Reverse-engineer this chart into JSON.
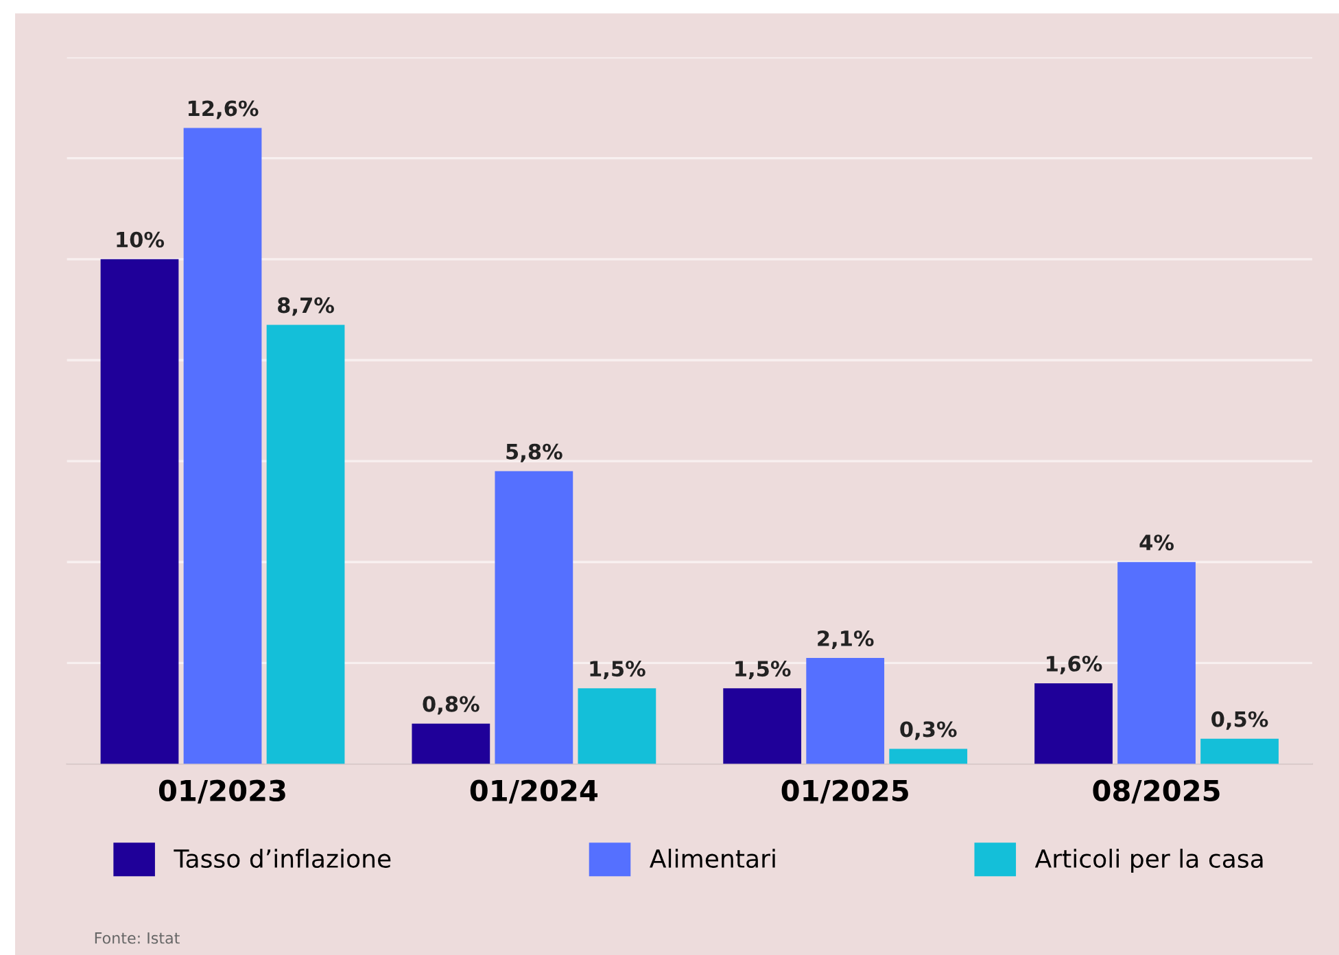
{
  "chart_data": {
    "type": "bar",
    "categories": [
      "01/2023",
      "01/2024",
      "01/2025",
      "08/2025"
    ],
    "series": [
      {
        "name": "Tasso d’inflazione",
        "color": "#1f0099",
        "values": [
          10,
          0.8,
          1.5,
          1.6
        ],
        "value_labels": [
          "10%",
          "0,8%",
          "1,5%",
          "1,6%"
        ]
      },
      {
        "name": "Alimentari",
        "color": "#5570ff",
        "values": [
          12.6,
          5.8,
          2.1,
          4
        ],
        "value_labels": [
          "12,6%",
          "5,8%",
          "2,1%",
          "4%"
        ]
      },
      {
        "name": "Articoli per la casa",
        "color": "#14bfd9",
        "values": [
          8.7,
          1.5,
          0.3,
          0.5
        ],
        "value_labels": [
          "8,7%",
          "1,5%",
          "0,3%",
          "0,5%"
        ]
      }
    ],
    "ylim": [
      0,
      14
    ],
    "yticks": [
      0,
      2,
      4,
      6,
      8,
      10,
      12,
      14
    ],
    "tick_labels": "x",
    "grid": "y",
    "legend": "bottom",
    "annotations": [
      "Fonte: Istat"
    ]
  }
}
